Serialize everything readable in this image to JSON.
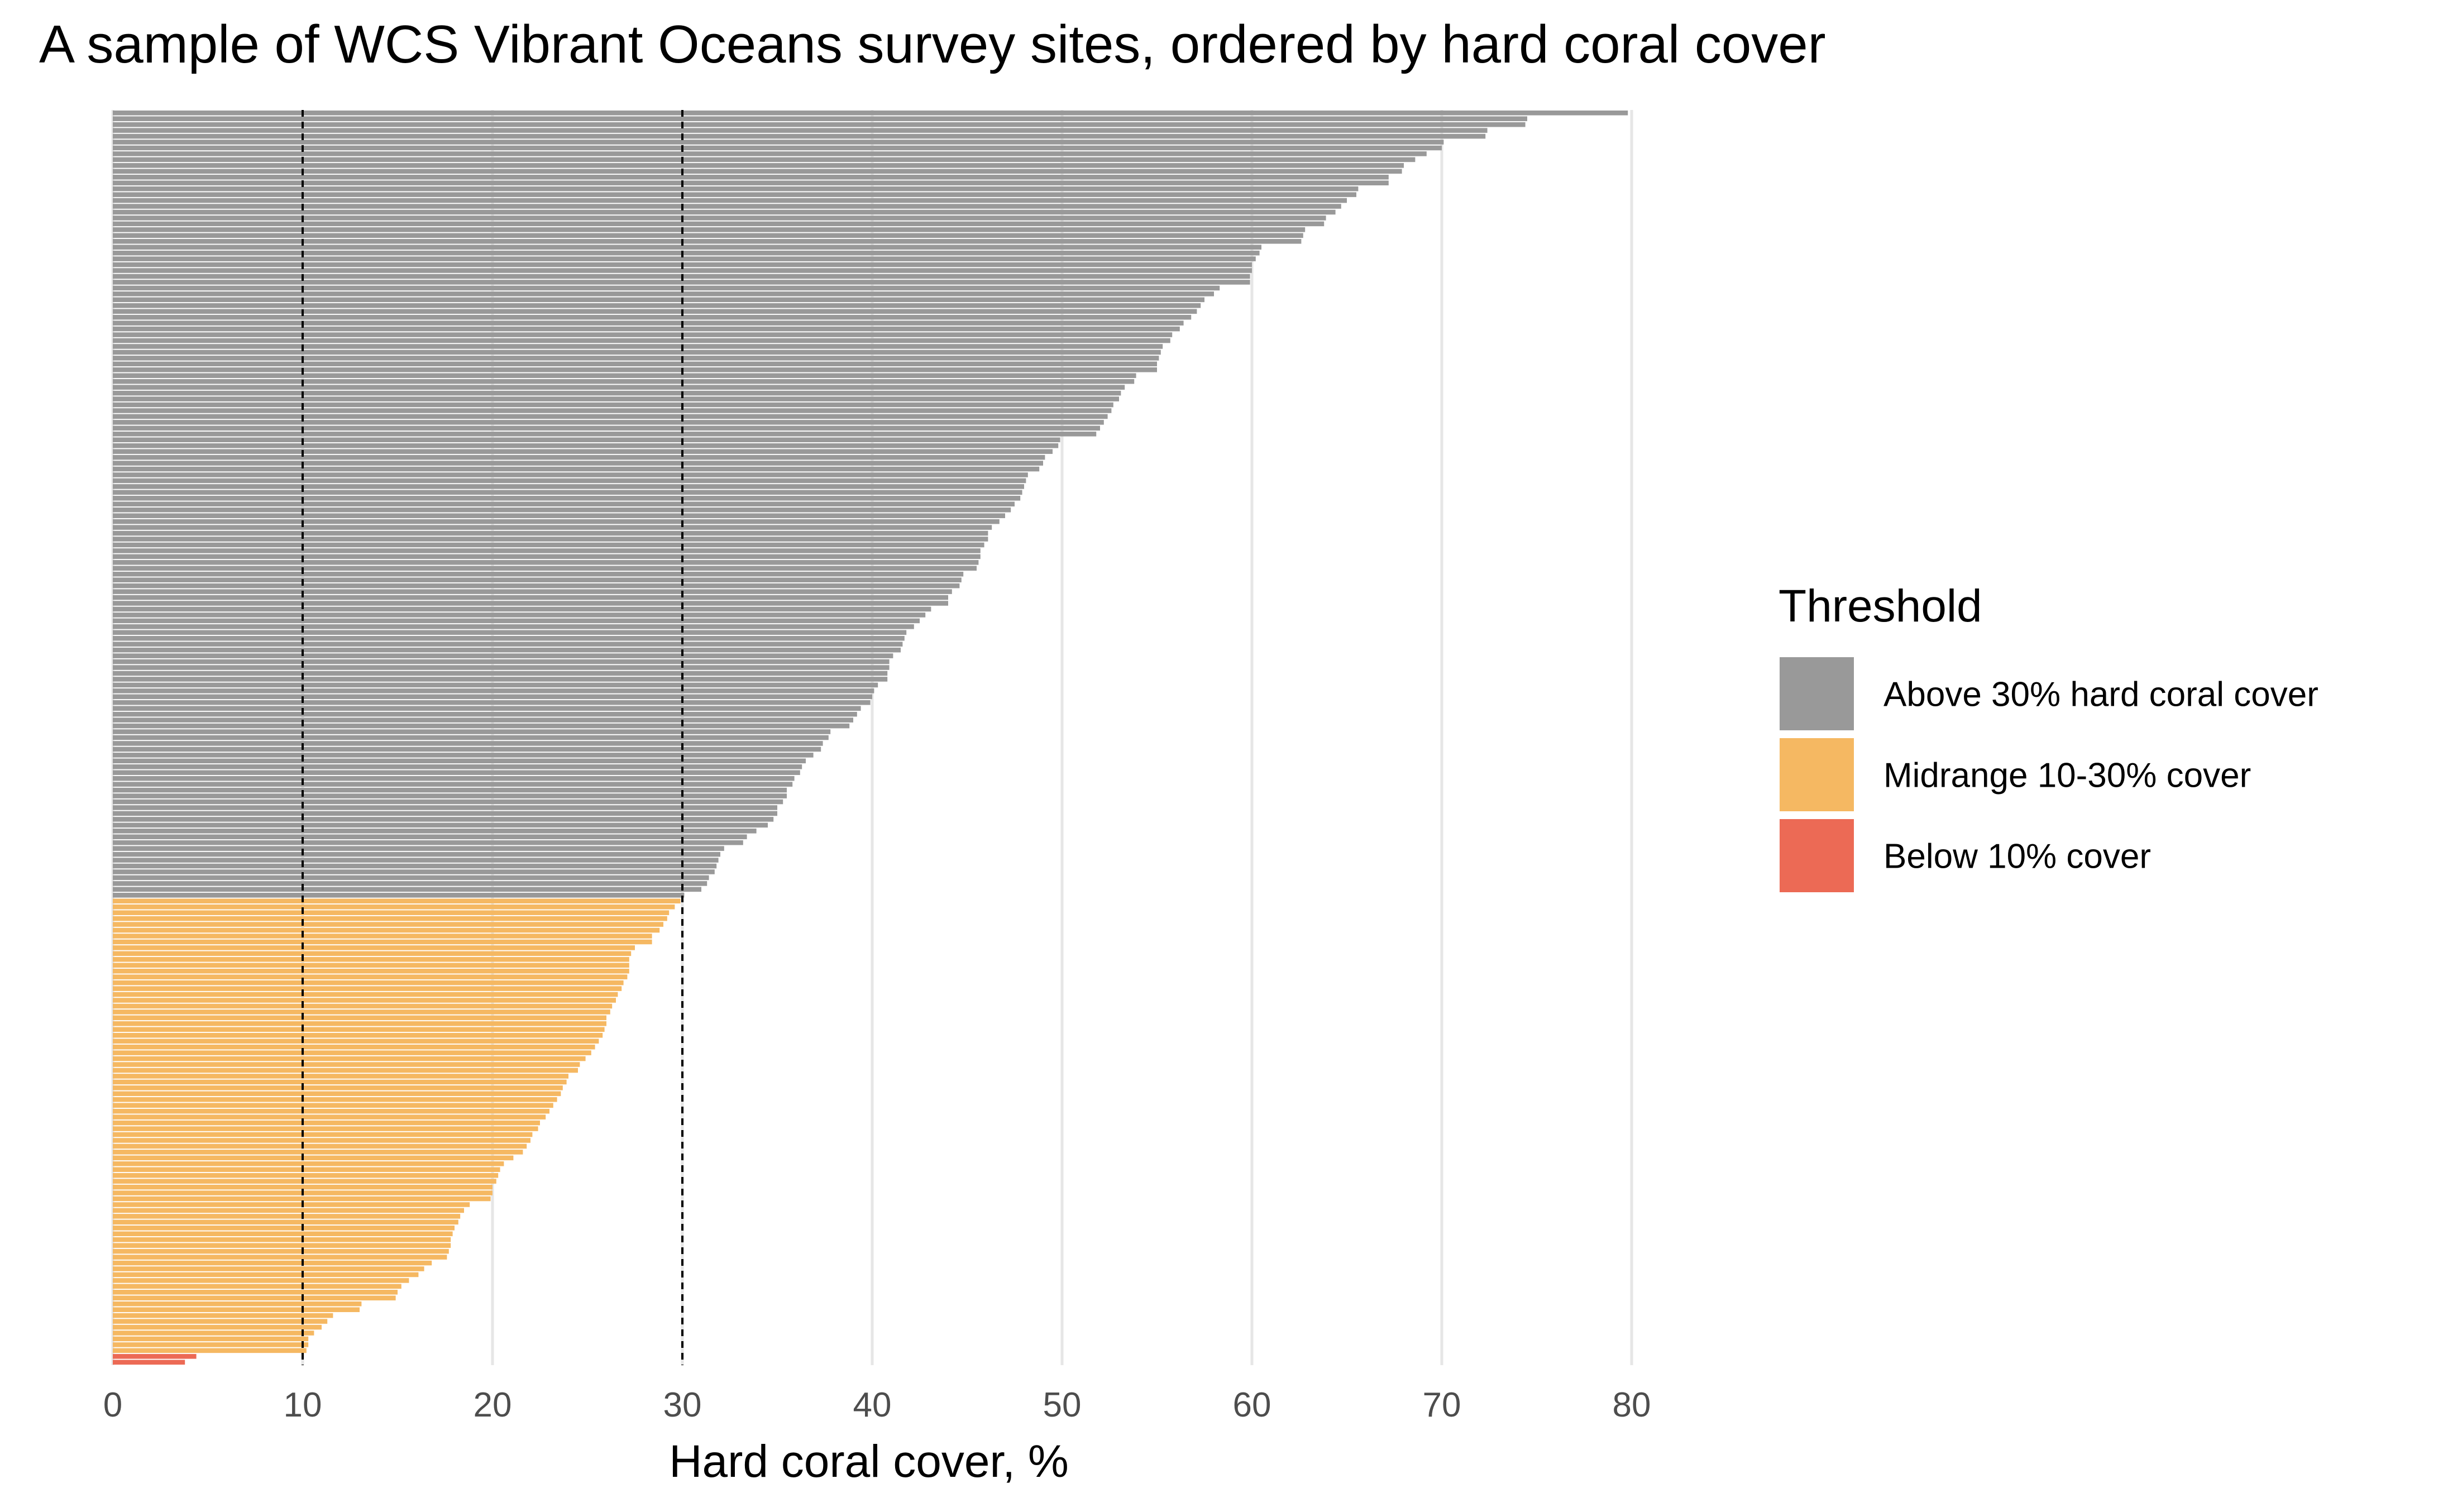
{
  "chart_data": {
    "type": "bar",
    "orientation": "horizontal",
    "title": "A sample of WCS Vibrant Oceans survey sites, ordered by hard coral cover",
    "xlabel": "Hard coral cover, %",
    "ylabel": "",
    "xlim": [
      0,
      80
    ],
    "x_ticks": [
      0,
      10,
      20,
      30,
      40,
      50,
      60,
      70,
      80
    ],
    "grid": "vertical major gridlines",
    "reference_lines": [
      {
        "value": 10,
        "style": "dashed"
      },
      {
        "value": 30,
        "style": "dashed"
      }
    ],
    "legend": {
      "title": "Threshold",
      "position": "right",
      "entries": [
        {
          "label": "Above 30% hard coral cover",
          "color": "#999999"
        },
        {
          "label": "Midrange 10-30% cover",
          "color": "#f5b862"
        },
        {
          "label": "Below 10% cover",
          "color": "#ec6a55"
        }
      ]
    },
    "series": [
      {
        "name": "Above 30% hard coral cover",
        "color": "#999999",
        "values": [
          79.8,
          74.5,
          74.4,
          72.4,
          72.3,
          70.1,
          70.0,
          69.2,
          68.6,
          68.0,
          67.9,
          67.2,
          67.2,
          65.6,
          65.5,
          65.0,
          64.7,
          64.4,
          63.9,
          63.8,
          62.8,
          62.7,
          62.6,
          60.5,
          60.4,
          60.2,
          60.0,
          60.0,
          59.9,
          59.9,
          58.3,
          58.0,
          57.5,
          57.3,
          57.1,
          56.8,
          56.4,
          56.2,
          55.8,
          55.7,
          55.3,
          55.2,
          55.1,
          55.0,
          55.0,
          53.9,
          53.8,
          53.3,
          53.1,
          53.0,
          52.7,
          52.6,
          52.4,
          52.2,
          52.0,
          51.8,
          49.9,
          49.8,
          49.5,
          49.1,
          49.0,
          48.8,
          48.2,
          48.1,
          48.0,
          47.9,
          47.8,
          47.5,
          47.3,
          47.0,
          46.7,
          46.3,
          46.1,
          46.1,
          45.9,
          45.7,
          45.7,
          45.6,
          45.5,
          44.8,
          44.7,
          44.6,
          44.2,
          44.0,
          44.0,
          43.1,
          42.8,
          42.5,
          42.2,
          41.8,
          41.7,
          41.6,
          41.5,
          41.1,
          40.9,
          40.9,
          40.8,
          40.8,
          40.3,
          40.1,
          40.0,
          39.9,
          39.4,
          39.2,
          39.0,
          38.8,
          37.8,
          37.7,
          37.4,
          37.3,
          36.9,
          36.5,
          36.3,
          36.2,
          35.9,
          35.8,
          35.5,
          35.5,
          35.3,
          35.0,
          35.0,
          34.8,
          34.5,
          33.9,
          33.4,
          33.2,
          32.2,
          32.0,
          31.9,
          31.8,
          31.7,
          31.4,
          31.3,
          31.0,
          30.1
        ]
      },
      {
        "name": "Midrange 10-30% cover",
        "color": "#f5b862",
        "values": [
          29.9,
          29.6,
          29.3,
          29.2,
          29.0,
          28.8,
          28.4,
          28.4,
          27.5,
          27.3,
          27.2,
          27.2,
          27.2,
          27.1,
          26.9,
          26.8,
          26.6,
          26.5,
          26.3,
          26.2,
          26.0,
          26.0,
          25.9,
          25.8,
          25.6,
          25.4,
          25.2,
          24.9,
          24.6,
          24.5,
          24.0,
          23.9,
          23.7,
          23.6,
          23.4,
          23.2,
          23.0,
          22.8,
          22.5,
          22.4,
          22.1,
          22.0,
          21.8,
          21.6,
          21.1,
          20.6,
          20.4,
          20.3,
          20.2,
          20.0,
          20.0,
          19.9,
          18.8,
          18.5,
          18.3,
          18.2,
          18.0,
          17.9,
          17.8,
          17.8,
          17.7,
          17.6,
          16.8,
          16.4,
          16.1,
          15.6,
          15.2,
          15.0,
          14.9,
          13.1,
          13.0,
          11.6,
          11.3,
          11.0,
          10.6,
          10.3,
          10.3,
          10.2
        ]
      },
      {
        "name": "Below 10% cover",
        "color": "#ec6a55",
        "values": [
          4.4,
          3.8
        ]
      }
    ]
  }
}
